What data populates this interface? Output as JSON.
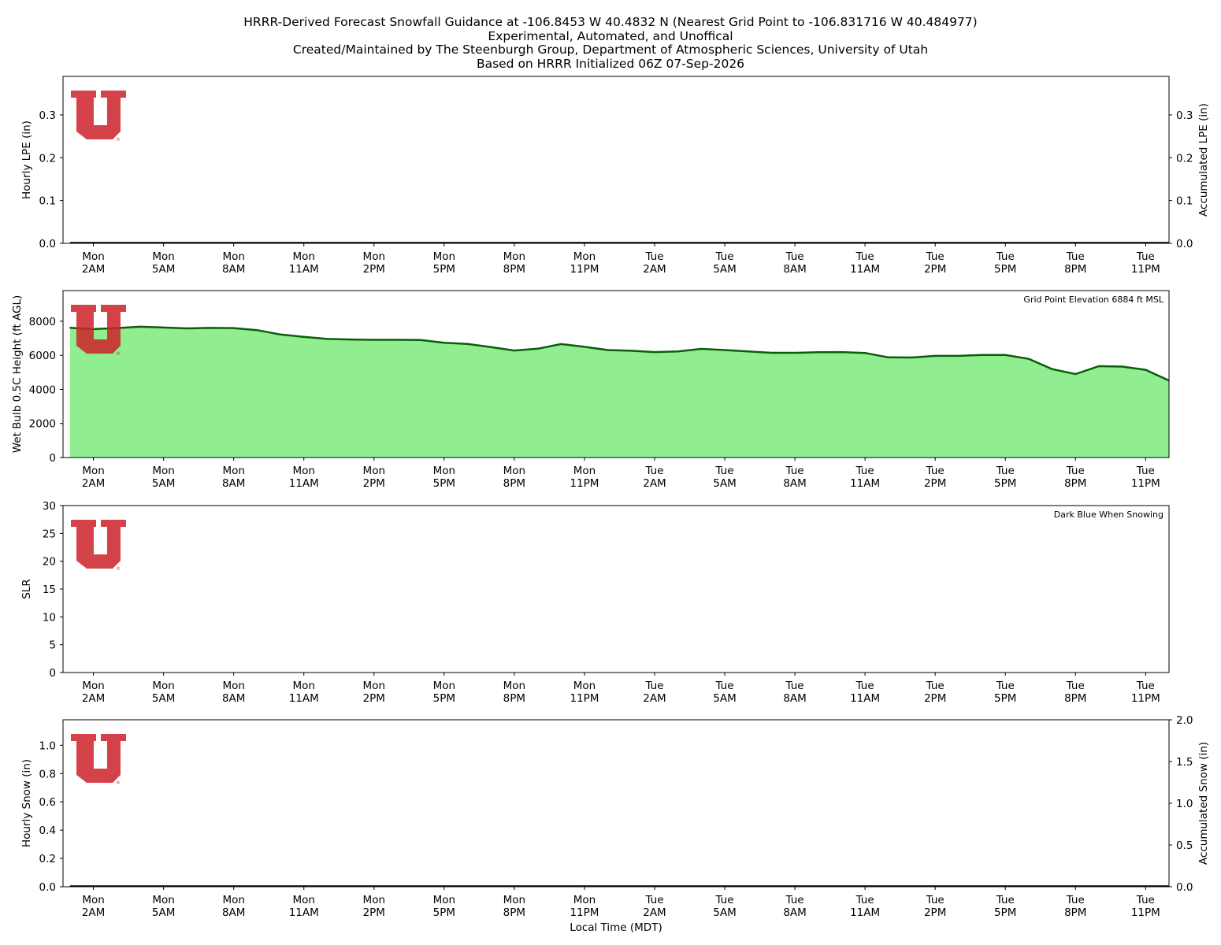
{
  "title_lines": [
    "HRRR-Derived Forecast Snowfall Guidance at -106.8453 W 40.4832 N (Nearest Grid Point to -106.831716 W 40.484977)",
    "Experimental, Automated, and Unoffical",
    "Created/Maintained by The Steenburgh Group, Department of Atmospheric Sciences, University of Utah",
    "Based on HRRR Initialized 06Z 07-Sep-2026"
  ],
  "xlabel": "Local Time (MDT)",
  "x_ticks": [
    {
      "day": "Mon",
      "time": "2AM"
    },
    {
      "day": "Mon",
      "time": "5AM"
    },
    {
      "day": "Mon",
      "time": "8AM"
    },
    {
      "day": "Mon",
      "time": "11AM"
    },
    {
      "day": "Mon",
      "time": "2PM"
    },
    {
      "day": "Mon",
      "time": "5PM"
    },
    {
      "day": "Mon",
      "time": "8PM"
    },
    {
      "day": "Mon",
      "time": "11PM"
    },
    {
      "day": "Tue",
      "time": "2AM"
    },
    {
      "day": "Tue",
      "time": "5AM"
    },
    {
      "day": "Tue",
      "time": "8AM"
    },
    {
      "day": "Tue",
      "time": "11AM"
    },
    {
      "day": "Tue",
      "time": "2PM"
    },
    {
      "day": "Tue",
      "time": "5PM"
    },
    {
      "day": "Tue",
      "time": "8PM"
    },
    {
      "day": "Tue",
      "time": "11PM"
    }
  ],
  "colors": {
    "wetbulb_fill": "#90ee90",
    "wetbulb_line": "#0d5c0d",
    "series_line": "#000000",
    "logo_red": "#cc2229"
  },
  "logo": {
    "name": "university-of-utah-logo",
    "mark": "®"
  },
  "chart_data": [
    {
      "name": "hourly-lpe",
      "type": "bar",
      "x_start": "Mon 1AM",
      "x_step_hours": 1,
      "x_range_hours": [
        0,
        47
      ],
      "ylabel": "Hourly LPE (in)",
      "ylim": [
        0,
        0.39
      ],
      "yticks": [
        0.0,
        0.1,
        0.2,
        0.3
      ],
      "y2label": "Accumulated LPE (in)",
      "y2lim": [
        0,
        0.39
      ],
      "y2ticks": [
        0.0,
        0.1,
        0.2,
        0.3
      ],
      "series": [
        {
          "values": [
            0,
            0,
            0,
            0,
            0,
            0,
            0,
            0,
            0,
            0,
            0,
            0,
            0,
            0,
            0,
            0,
            0,
            0,
            0,
            0,
            0,
            0,
            0,
            0,
            0,
            0,
            0,
            0,
            0,
            0,
            0,
            0,
            0,
            0,
            0,
            0,
            0,
            0,
            0,
            0,
            0,
            0,
            0,
            0,
            0,
            0,
            0,
            0
          ]
        }
      ],
      "note": ""
    },
    {
      "name": "wetbulb-height",
      "type": "area",
      "x_start": "Mon 1AM",
      "x_step_hours": 1,
      "x_range_hours": [
        0,
        47
      ],
      "ylabel": "Wet Bulb 0.5C Height (ft AGL)",
      "ylim": [
        0,
        9800
      ],
      "yticks": [
        0,
        2000,
        4000,
        6000,
        8000
      ],
      "series": [
        {
          "values": [
            7620,
            7540,
            7600,
            7680,
            7630,
            7580,
            7610,
            7600,
            7480,
            7220,
            7080,
            6960,
            6930,
            6910,
            6910,
            6900,
            6740,
            6670,
            6480,
            6280,
            6390,
            6660,
            6500,
            6310,
            6270,
            6190,
            6230,
            6380,
            6310,
            6230,
            6150,
            6150,
            6180,
            6190,
            6140,
            5880,
            5870,
            5970,
            5970,
            6020,
            6020,
            5790,
            5190,
            4900,
            5360,
            5340,
            5150,
            4520
          ]
        }
      ],
      "note": "Grid Point Elevation 6884 ft MSL"
    },
    {
      "name": "slr",
      "type": "scatter",
      "x_start": "Mon 1AM",
      "x_step_hours": 1,
      "x_range_hours": [
        0,
        47
      ],
      "ylabel": "SLR",
      "ylim": [
        0,
        30
      ],
      "yticks": [
        0,
        5,
        10,
        15,
        20,
        25,
        30
      ],
      "series": [],
      "note": "Dark Blue When Snowing"
    },
    {
      "name": "hourly-snow",
      "type": "bar",
      "x_start": "Mon 1AM",
      "x_step_hours": 1,
      "x_range_hours": [
        0,
        47
      ],
      "ylabel": "Hourly Snow (in)",
      "ylim": [
        0,
        1.18
      ],
      "yticks": [
        0.0,
        0.2,
        0.4,
        0.6,
        0.8,
        1.0
      ],
      "y2label": "Accumulated Snow (in)",
      "y2lim": [
        0,
        2.0
      ],
      "y2ticks": [
        0.0,
        0.5,
        1.0,
        1.5,
        2.0
      ],
      "series": [
        {
          "values": [
            0,
            0,
            0,
            0,
            0,
            0,
            0,
            0,
            0,
            0,
            0,
            0,
            0,
            0,
            0,
            0,
            0,
            0,
            0,
            0,
            0,
            0,
            0,
            0,
            0,
            0,
            0,
            0,
            0,
            0,
            0,
            0,
            0,
            0,
            0,
            0,
            0,
            0,
            0,
            0,
            0,
            0,
            0,
            0,
            0,
            0,
            0,
            0
          ]
        }
      ],
      "note": ""
    }
  ]
}
